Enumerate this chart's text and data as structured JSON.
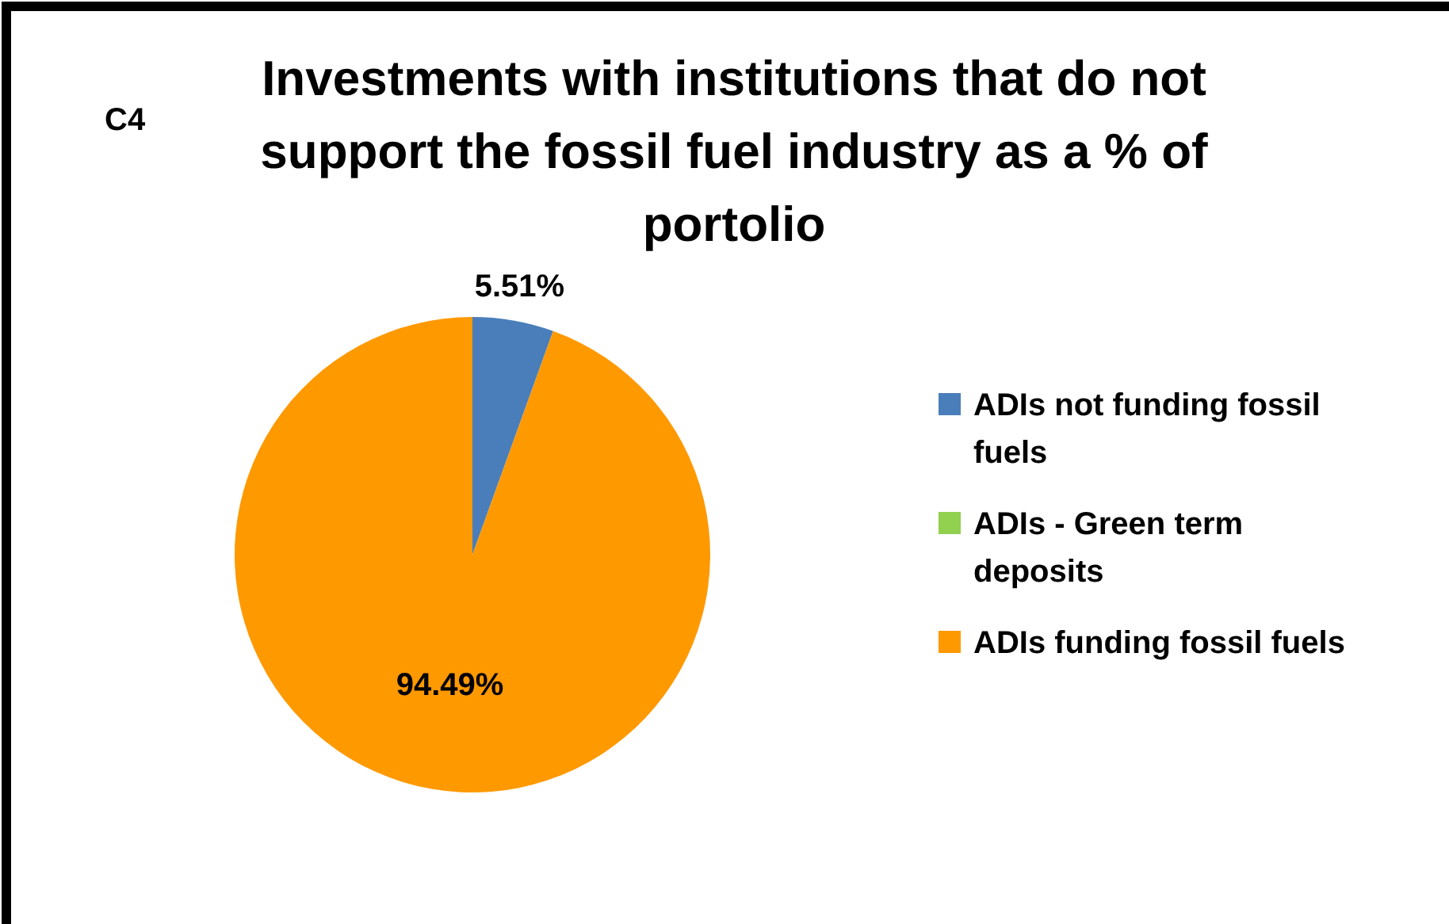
{
  "chart_data": {
    "type": "pie",
    "title": "Investments with institutions that do not support the fossil fuel industry as a % of portolio",
    "annotations": [
      "C4"
    ],
    "categories": [
      "ADIs not funding fossil fuels",
      "ADIs - Green term deposits",
      "ADIs funding fossil fuels"
    ],
    "values": [
      5.51,
      0,
      94.49
    ],
    "colors": [
      "#4a7ebb",
      "#92d050",
      "#ff9900"
    ],
    "value_labels": [
      "5.51%",
      null,
      "94.49%"
    ],
    "legend": "right"
  }
}
